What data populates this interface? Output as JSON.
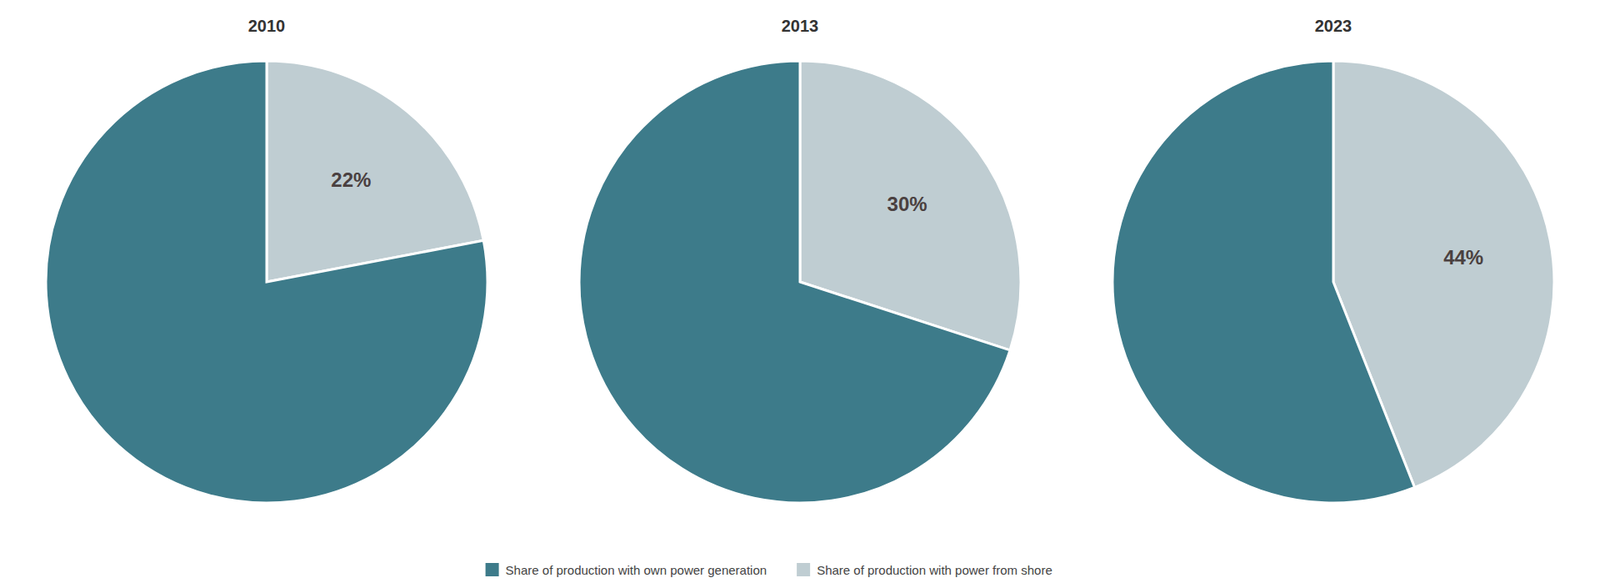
{
  "chart_data": [
    {
      "type": "pie",
      "title": "2010",
      "categories": [
        "Share of production with power from shore",
        "Share of production with own power generation"
      ],
      "values": [
        22,
        78
      ],
      "value_labels": [
        "22%",
        null
      ],
      "colors": [
        "#bfcdd2",
        "#3d7b8a"
      ],
      "data_labels": true,
      "legend": "bottom"
    },
    {
      "type": "pie",
      "title": "2013",
      "categories": [
        "Share of production with power from shore",
        "Share of production with own power generation"
      ],
      "values": [
        30,
        70
      ],
      "value_labels": [
        "30%",
        null
      ],
      "colors": [
        "#bfcdd2",
        "#3d7b8a"
      ],
      "data_labels": true
    },
    {
      "type": "pie",
      "title": "2023",
      "categories": [
        "Share of production with power from shore",
        "Share of production with own power generation"
      ],
      "values": [
        44,
        56
      ],
      "value_labels": [
        "44%",
        null
      ],
      "colors": [
        "#bfcdd2",
        "#3d7b8a"
      ],
      "data_labels": true
    }
  ]
}
